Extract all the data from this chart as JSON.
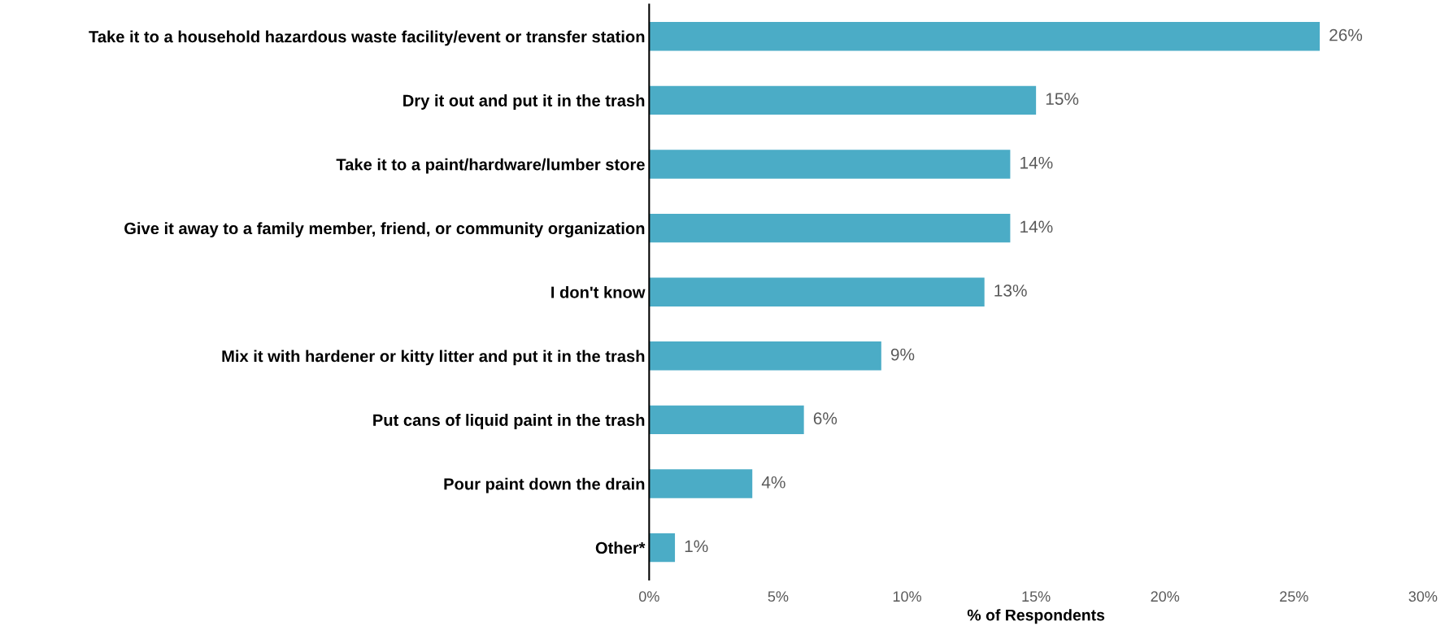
{
  "chart_data": {
    "type": "bar",
    "orientation": "horizontal",
    "xlabel": "% of Respondents",
    "categories": [
      "Take it to a household hazardous waste facility/event or transfer station",
      "Dry it out and put it in the trash",
      "Take it to a paint/hardware/lumber store",
      "Give it away to a family member, friend, or community organization",
      "I don't know",
      "Mix it with hardener or kitty litter and put it in the trash",
      "Put cans of liquid paint in the trash",
      "Pour paint down the drain",
      "Other*"
    ],
    "values": [
      26,
      15,
      14,
      14,
      13,
      9,
      6,
      4,
      1
    ],
    "value_labels": [
      "26%",
      "15%",
      "14%",
      "14%",
      "13%",
      "9%",
      "6%",
      "4%",
      "1%"
    ],
    "color": "#4bacc6",
    "xlim": [
      0,
      30
    ],
    "xticks": [
      {
        "value": 0,
        "label": "0%"
      },
      {
        "value": 5,
        "label": "5%"
      },
      {
        "value": 10,
        "label": "10%"
      },
      {
        "value": 15,
        "label": "15%"
      },
      {
        "value": 20,
        "label": "20%"
      },
      {
        "value": 25,
        "label": "25%"
      },
      {
        "value": 30,
        "label": "30%"
      }
    ],
    "grid": false,
    "legend": false
  }
}
